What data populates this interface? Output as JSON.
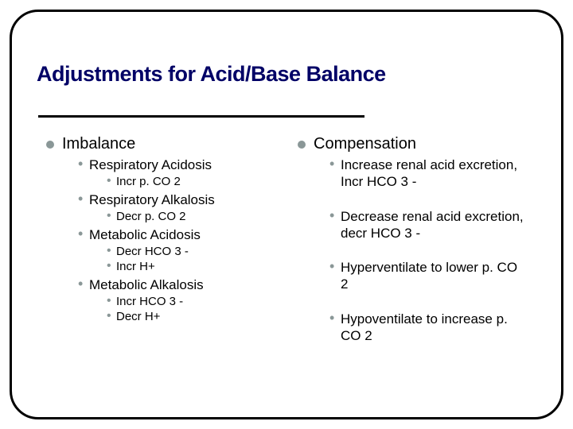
{
  "title": "Adjustments for Acid/Base Balance",
  "left": {
    "heading": "Imbalance",
    "items": [
      {
        "text": "Respiratory Acidosis",
        "sub": [
          "Incr p. CO 2"
        ]
      },
      {
        "text": "Respiratory Alkalosis",
        "sub": [
          "Decr p. CO 2"
        ]
      },
      {
        "text": "Metabolic Acidosis",
        "sub": [
          "Decr HCO 3 -",
          "Incr H+"
        ]
      },
      {
        "text": "Metabolic Alkalosis",
        "sub": [
          "Incr HCO 3 -",
          "Decr H+"
        ]
      }
    ]
  },
  "right": {
    "heading": "Compensation",
    "items": [
      {
        "text": "Increase renal acid excretion, Incr HCO 3 -"
      },
      {
        "text": "Decrease renal acid excretion, decr HCO 3 -"
      },
      {
        "text": "Hyperventilate to lower p. CO 2"
      },
      {
        "text": "Hypoventilate to increase p. CO 2"
      }
    ]
  },
  "colors": {
    "title": "#000066",
    "bullet": "#8a9797",
    "frame": "#000000"
  }
}
